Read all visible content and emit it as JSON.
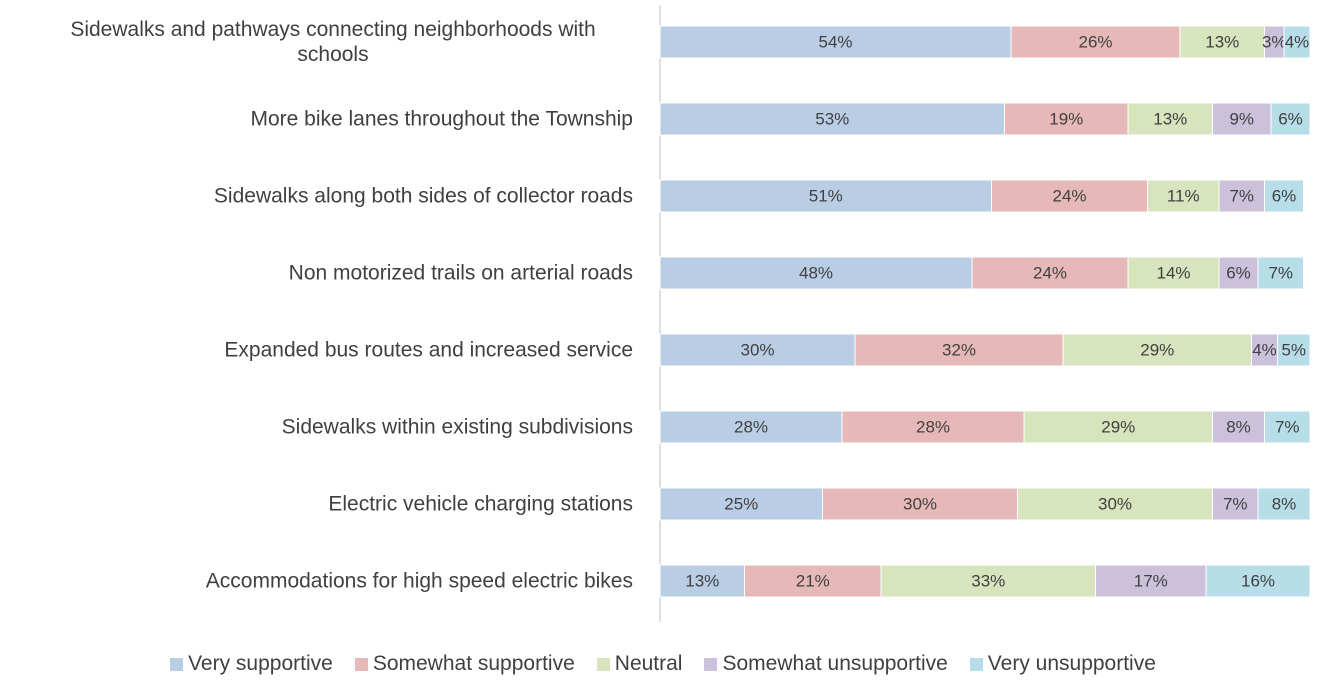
{
  "chart_data": {
    "type": "stacked-bar-horizontal",
    "categories": [
      "Sidewalks and pathways connecting neighborhoods with schools",
      "More bike lanes throughout the Township",
      "Sidewalks along both sides of collector roads",
      "Non motorized trails on arterial roads",
      "Expanded bus routes and increased service",
      "Sidewalks within existing subdivisions",
      "Electric vehicle charging stations",
      "Accommodations for high speed electric bikes"
    ],
    "series": [
      {
        "name": "Very supportive",
        "color": "#b9cde5",
        "values": [
          54,
          53,
          51,
          48,
          30,
          28,
          25,
          13
        ],
        "value_labels": [
          "54%",
          "53%",
          "51%",
          "48%",
          "30%",
          "28%",
          "25%",
          "13%"
        ]
      },
      {
        "name": "Somewhat supportive",
        "color": "#e6b9b8",
        "values": [
          26,
          19,
          24,
          24,
          32,
          28,
          30,
          21
        ],
        "value_labels": [
          "26%",
          "19%",
          "24%",
          "24%",
          "32%",
          "28%",
          "30%",
          "21%"
        ]
      },
      {
        "name": "Neutral",
        "color": "#d7e4bd",
        "values": [
          13,
          13,
          11,
          14,
          29,
          29,
          30,
          33
        ],
        "value_labels": [
          "13%",
          "13%",
          "11%",
          "14%",
          "29%",
          "29%",
          "30%",
          "33%"
        ]
      },
      {
        "name": "Somewhat unsupportive",
        "color": "#ccc1da",
        "values": [
          3,
          9,
          7,
          6,
          4,
          8,
          7,
          17
        ],
        "value_labels": [
          "3%",
          "9%",
          "7%",
          "6%",
          "4%",
          "8%",
          "7%",
          "17%"
        ]
      },
      {
        "name": "Very unsupportive",
        "color": "#b7dee8",
        "values": [
          4,
          6,
          6,
          7,
          5,
          7,
          8,
          16
        ],
        "value_labels": [
          "4%",
          "6%",
          "6%",
          "7%",
          "5%",
          "7%",
          "8%",
          "16%"
        ]
      }
    ]
  }
}
